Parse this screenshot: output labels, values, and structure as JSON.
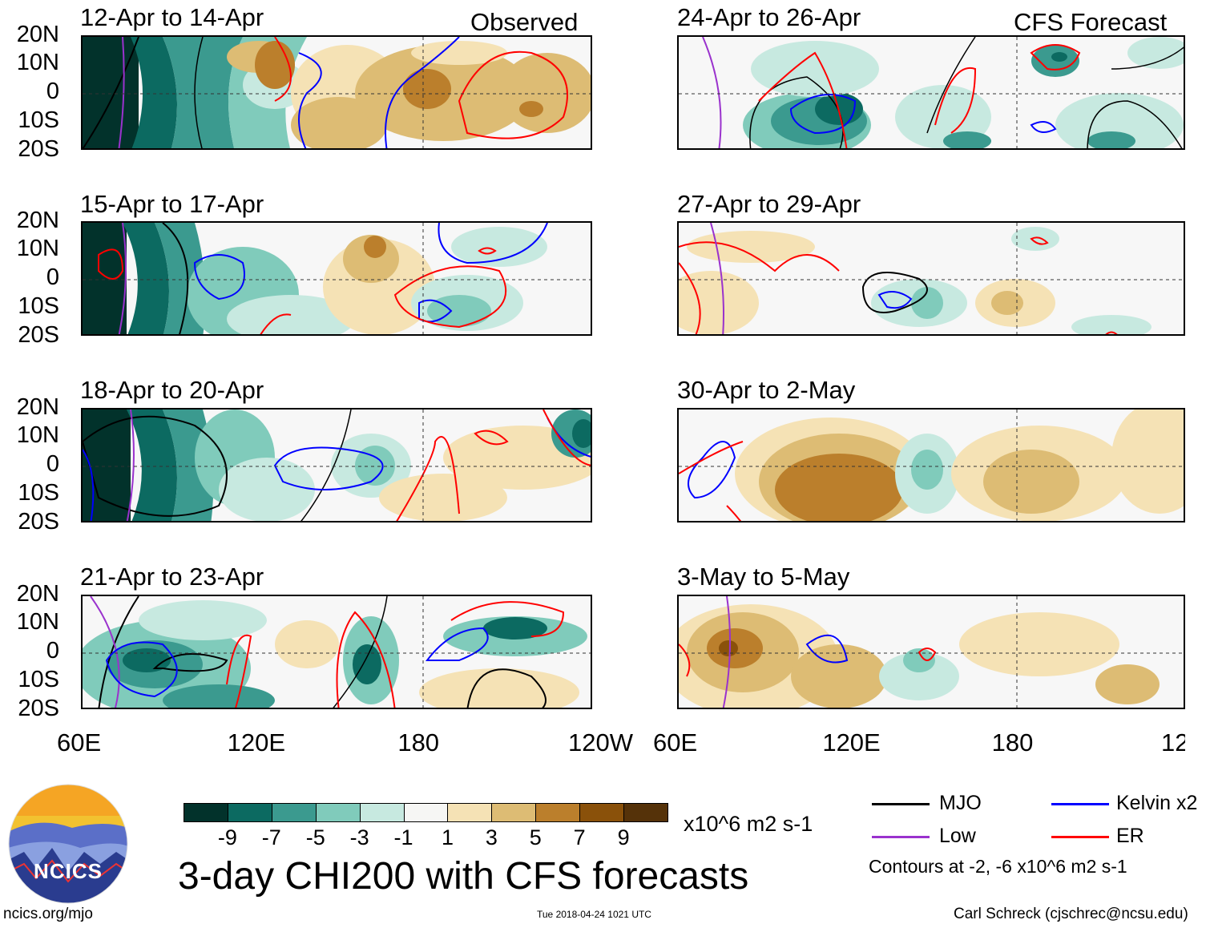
{
  "panels": {
    "observed": [
      {
        "title": "12-Apr to 14-Apr"
      },
      {
        "title": "15-Apr to 17-Apr"
      },
      {
        "title": "18-Apr to 20-Apr"
      },
      {
        "title": "21-Apr to 23-Apr"
      }
    ],
    "forecast": [
      {
        "title": "24-Apr to 26-Apr"
      },
      {
        "title": "27-Apr to 29-Apr"
      },
      {
        "title": "30-Apr to 2-May"
      },
      {
        "title": "3-May to 5-May"
      }
    ],
    "observed_tag": "Observed",
    "forecast_tag": "CFS Forecast"
  },
  "axes": {
    "lat_labels": [
      "20N",
      "10N",
      "0",
      "10S",
      "20S"
    ],
    "lon_labels": [
      "60E",
      "120E",
      "180",
      "120W"
    ]
  },
  "colorbar": {
    "tick_labels": [
      "-9",
      "-7",
      "-5",
      "-3",
      "-1",
      "1",
      "3",
      "5",
      "7",
      "9"
    ],
    "colors": [
      "#02322b",
      "#0c6a61",
      "#3b9a8f",
      "#80cbbb",
      "#c7e9e0",
      "#f6f6f4",
      "#f5e2b5",
      "#ddbc74",
      "#bb7f2c",
      "#8a510a",
      "#553209"
    ],
    "units": "x10^6 m2 s-1"
  },
  "legend": {
    "mjo": "MJO",
    "low": "Low",
    "kelvin": "Kelvin x2",
    "er": "ER",
    "note": "Contours at -2, -6 x10^6 m2 s-1",
    "colors": {
      "mjo": "#000000",
      "low": "#9a32cd",
      "kelvin": "#0000ff",
      "er": "#ff0000"
    }
  },
  "main_title": "3-day CHI200 with CFS forecasts",
  "logo_text": "NCICS",
  "footer": {
    "url": "ncics.org/mjo",
    "timestamp": "Tue 2018-04-24 1021 UTC",
    "author": "Carl Schreck (cjschrec@ncsu.edu)"
  }
}
